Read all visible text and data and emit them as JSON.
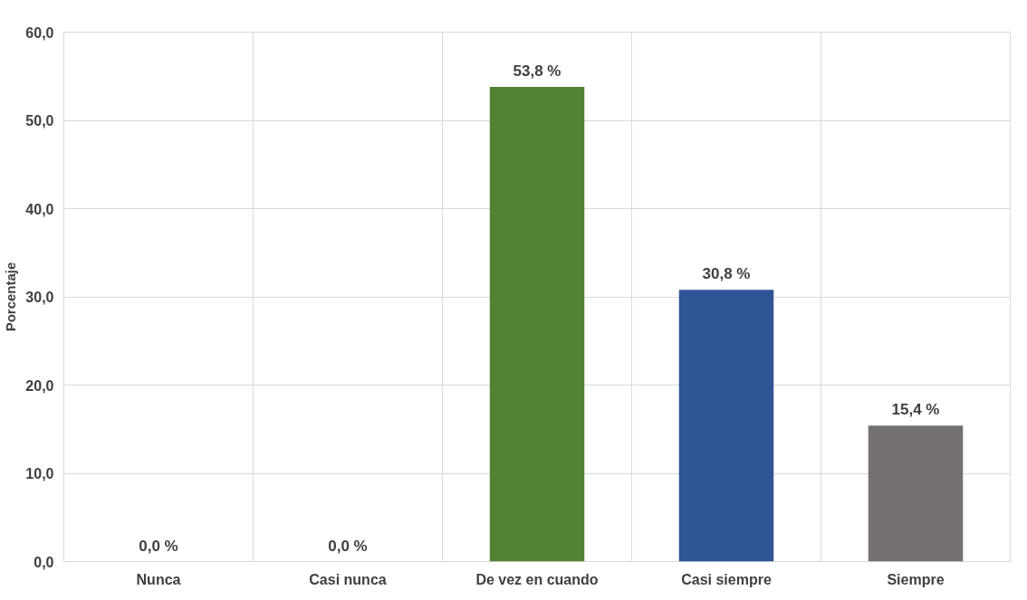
{
  "chart_data": {
    "type": "bar",
    "ylabel": "Porcentaje",
    "categories": [
      "Nunca",
      "Casi nunca",
      "De vez en cuando",
      "Casi siempre",
      "Siempre"
    ],
    "values": [
      0.0,
      0.0,
      53.8,
      30.8,
      15.4
    ],
    "colors": [
      "#548235",
      "#548235",
      "#548235",
      "#2f5597",
      "#767171"
    ],
    "value_labels": [
      "0,0 %",
      "0,0 %",
      "53,8 %",
      "30,8 %",
      "15,4 %"
    ],
    "ylim": [
      0,
      60
    ],
    "yticks": [
      {
        "value": 0,
        "label": "0,0"
      },
      {
        "value": 10,
        "label": "10,0"
      },
      {
        "value": 20,
        "label": "20,0"
      },
      {
        "value": 30,
        "label": "30,0"
      },
      {
        "value": 40,
        "label": "40,0"
      },
      {
        "value": 50,
        "label": "50,0"
      },
      {
        "value": 60,
        "label": "60,0"
      }
    ],
    "grid": true
  }
}
